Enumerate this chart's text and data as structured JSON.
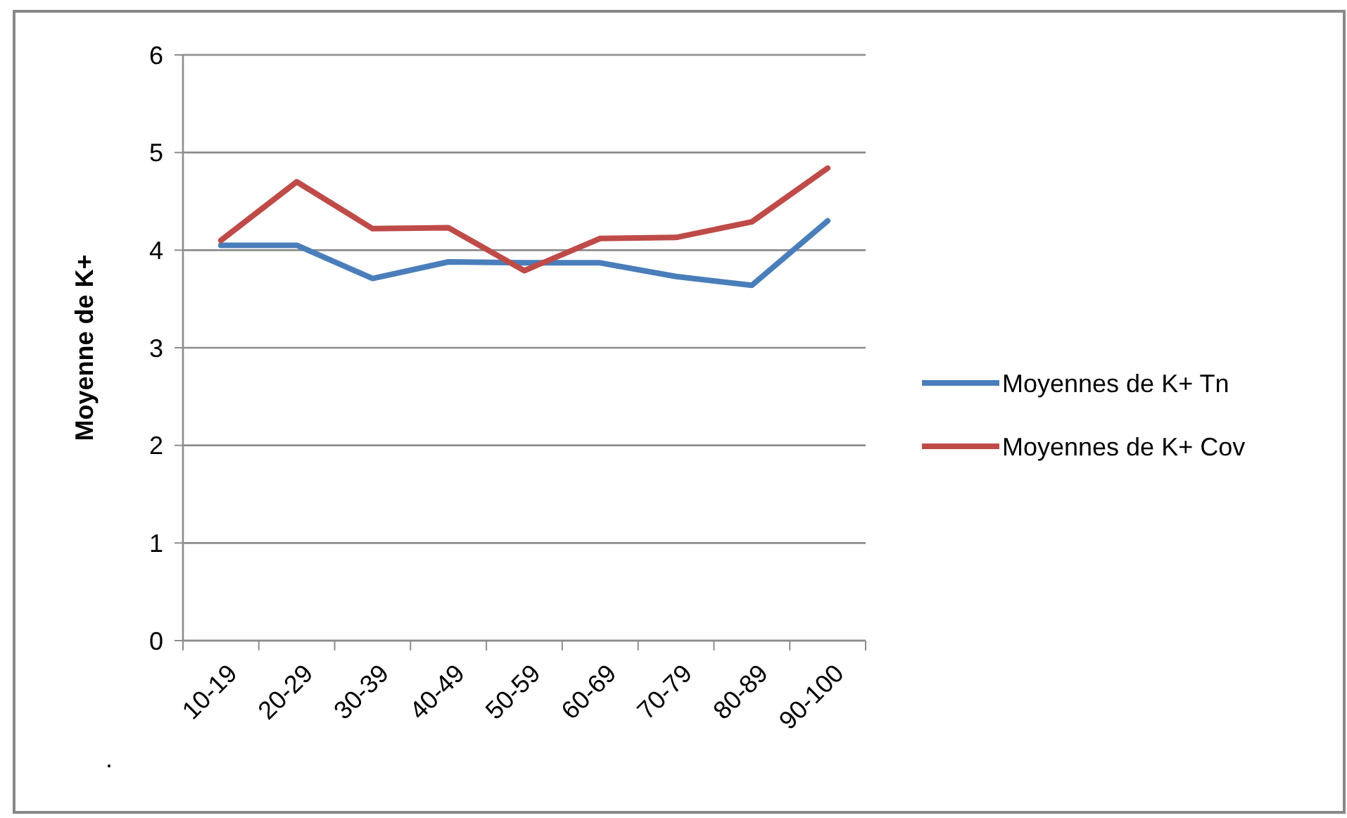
{
  "chart_data": {
    "type": "line",
    "ylabel": "Moyenne de K+",
    "categories": [
      "10-19",
      "20-29",
      "30-39",
      "40-49",
      "50-59",
      "60-69",
      "70-79",
      "80-89",
      "90-100"
    ],
    "series": [
      {
        "name": "Moyennes de K+ Tn",
        "color": "#4a7ebb",
        "values": [
          4.05,
          4.05,
          3.71,
          3.88,
          3.87,
          3.87,
          3.73,
          3.64,
          4.3
        ]
      },
      {
        "name": "Moyennes de K+ Cov",
        "color": "#be4b48",
        "values": [
          4.1,
          4.7,
          4.22,
          4.23,
          3.79,
          4.12,
          4.13,
          4.29,
          4.84
        ]
      }
    ],
    "ylim": [
      0,
      6
    ],
    "yticks": [
      0,
      1,
      2,
      3,
      4,
      5,
      6
    ],
    "grid": "y",
    "legend": "right",
    "marker": "none",
    "line_style": "solid",
    "annotations": [
      "."
    ]
  }
}
